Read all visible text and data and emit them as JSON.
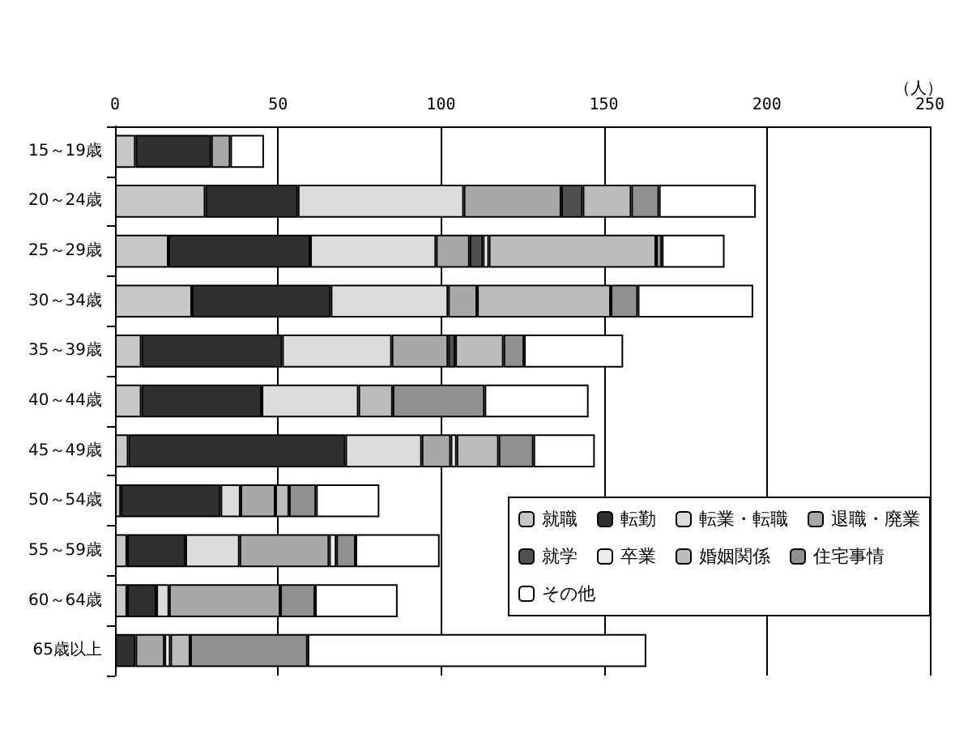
{
  "chart_data": {
    "type": "bar",
    "orientation": "horizontal",
    "stacked": true,
    "xlabel": "（人）",
    "categories": [
      "15～19歳",
      "20～24歳",
      "25～29歳",
      "30～34歳",
      "35～39歳",
      "40～44歳",
      "45～49歳",
      "50～54歳",
      "55～59歳",
      "60～64歳",
      "65歳以上"
    ],
    "xlim": [
      0,
      250
    ],
    "xticks": [
      0,
      50,
      100,
      150,
      200,
      250
    ],
    "grid": "x",
    "legend": "bottom right",
    "series": [
      {
        "name": "就職",
        "color": "#c8c8c8",
        "values": [
          6.3,
          27.7,
          16.4,
          23.6,
          8.1,
          8.1,
          4.1,
          1.8,
          3.7,
          3.7,
          null
        ]
      },
      {
        "name": "転勤",
        "color": "#303030",
        "values": [
          23.2,
          28.4,
          43.5,
          42.6,
          43.2,
          36.9,
          66.6,
          30.6,
          17.9,
          9.0,
          6.3
        ]
      },
      {
        "name": "転業・転職",
        "color": "#dcdcdc",
        "values": [
          null,
          50.9,
          38.6,
          36.0,
          33.6,
          29.7,
          23.4,
          6.1,
          16.6,
          3.9,
          null
        ]
      },
      {
        "name": "退職・廃業",
        "color": "#a8a8a8",
        "values": [
          5.9,
          29.9,
          10.3,
          8.9,
          17.3,
          null,
          8.9,
          10.7,
          27.5,
          34.1,
          8.9
        ]
      },
      {
        "name": "就学",
        "color": "#505050",
        "values": [
          null,
          6.6,
          4.1,
          null,
          2.2,
          null,
          null,
          null,
          null,
          null,
          null
        ]
      },
      {
        "name": "卒業",
        "color": "#ececec",
        "values": [
          null,
          null,
          1.8,
          null,
          null,
          null,
          1.8,
          null,
          2.2,
          null,
          1.8
        ]
      },
      {
        "name": "婚姻関係",
        "color": "#bcbcbc",
        "values": [
          null,
          14.9,
          51.3,
          41.0,
          14.8,
          10.5,
          12.9,
          4.2,
          null,
          null,
          6.1
        ]
      },
      {
        "name": "住宅事情",
        "color": "#909090",
        "values": [
          null,
          8.5,
          1.8,
          8.3,
          6.3,
          28.2,
          10.7,
          8.3,
          5.9,
          10.7,
          36.0
        ]
      },
      {
        "name": "その他",
        "color": "#ffffff",
        "values": [
          10.3,
          29.7,
          19.2,
          35.4,
          30.4,
          31.9,
          18.8,
          19.4,
          25.8,
          25.3,
          103.9
        ]
      }
    ]
  }
}
